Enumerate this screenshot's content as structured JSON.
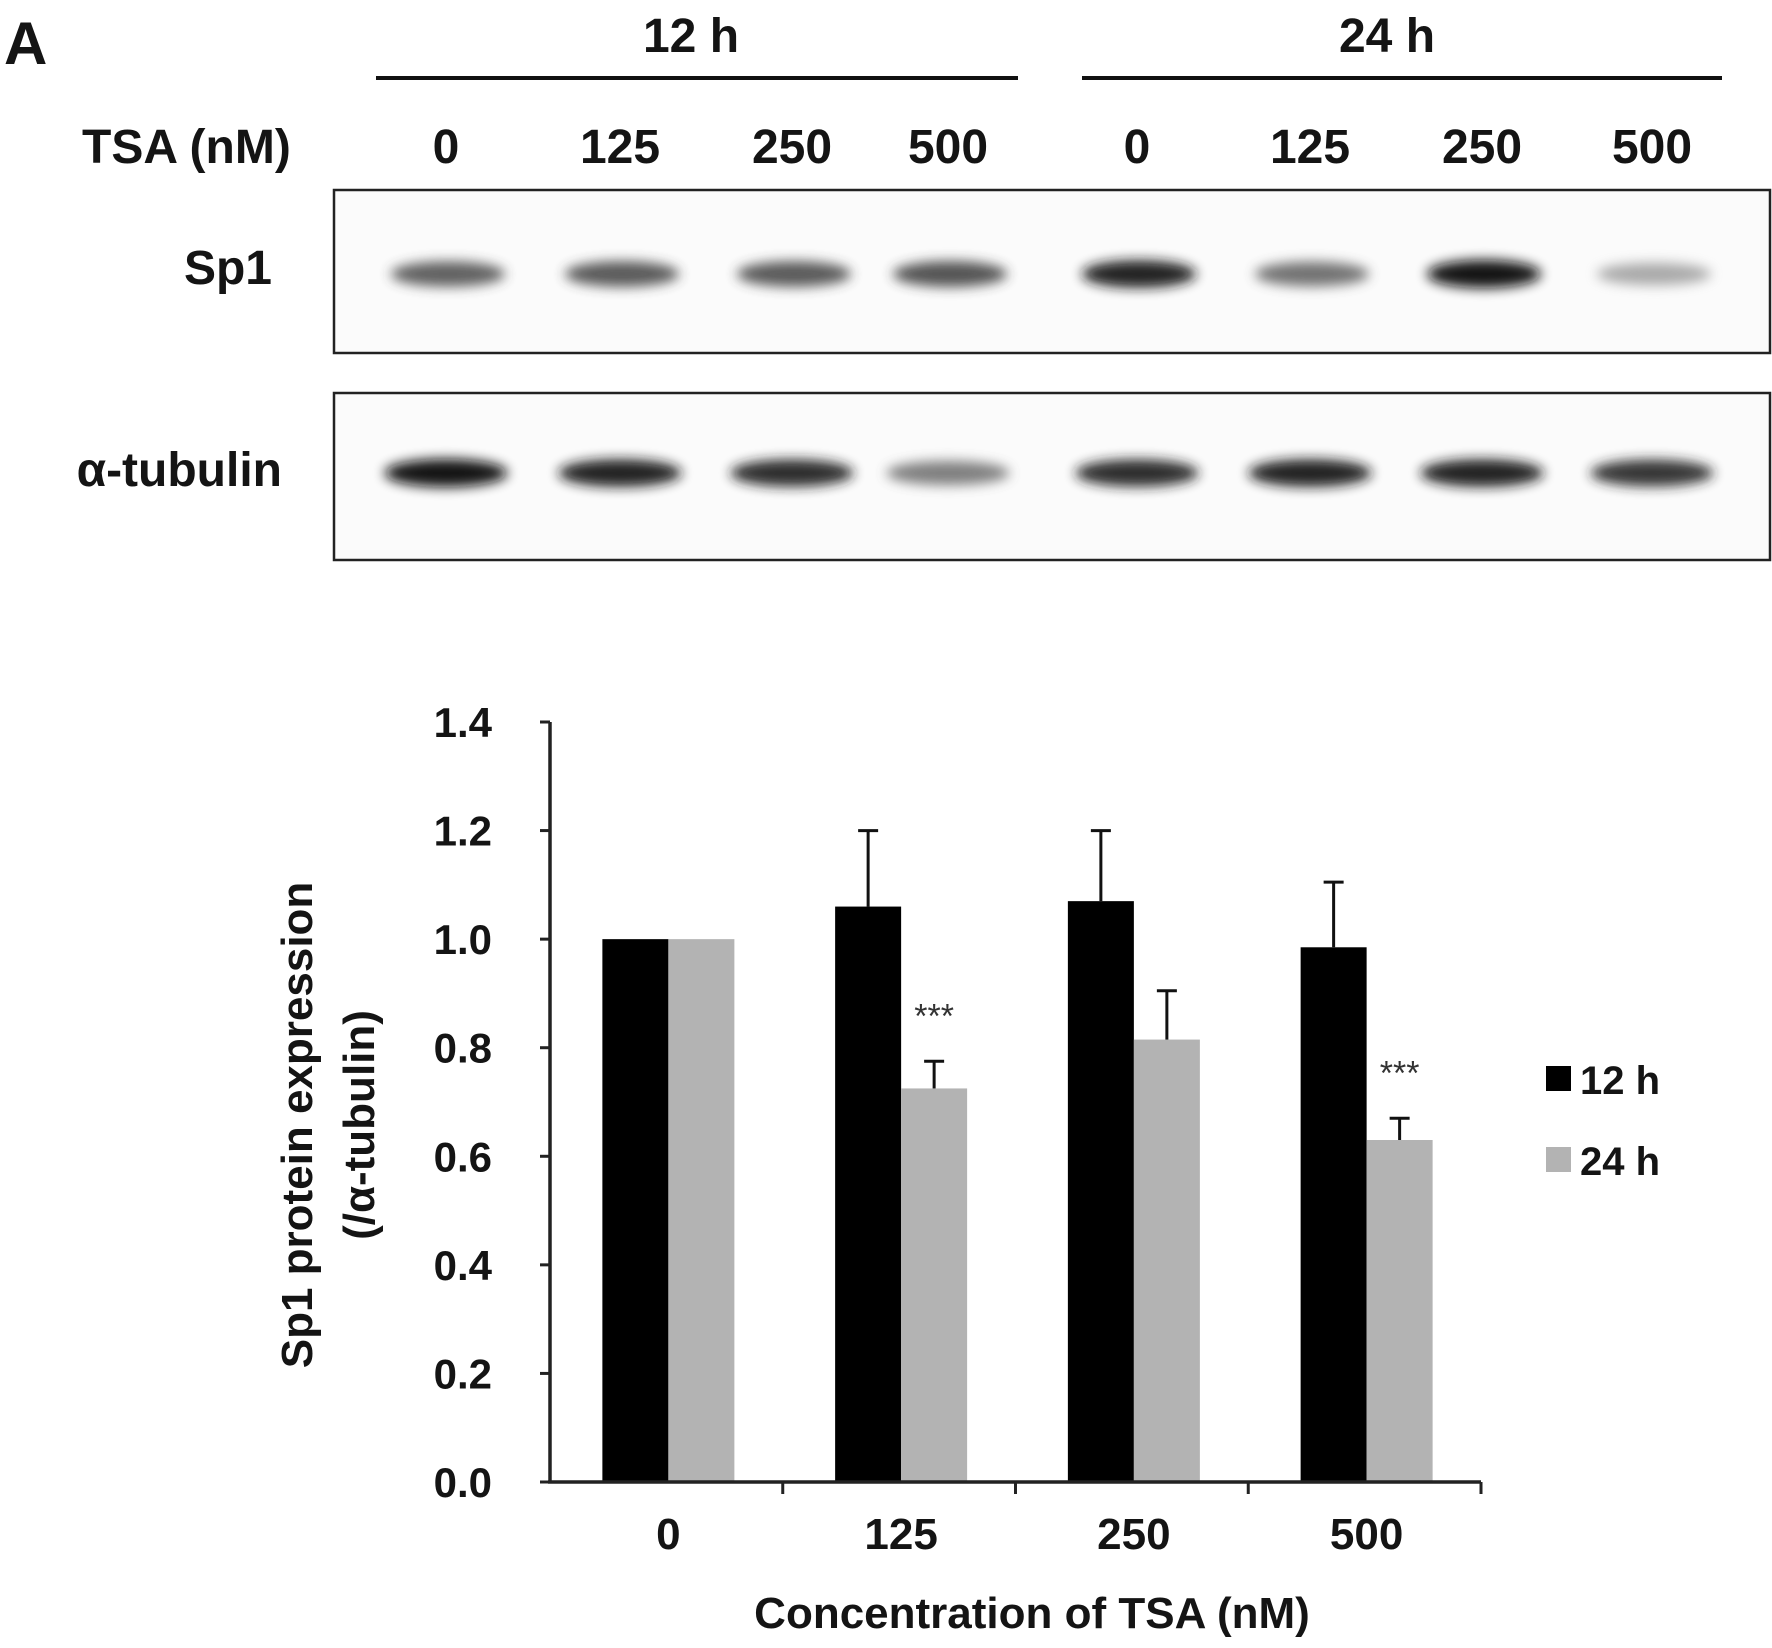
{
  "panel_label": "A",
  "blot": {
    "time_groups": [
      "12 h",
      "24 h"
    ],
    "treatment_label": "TSA (nM)",
    "lane_labels": [
      "0",
      "125",
      "250",
      "500",
      "0",
      "125",
      "250",
      "500"
    ],
    "rows": [
      {
        "label": "Sp1",
        "band_intensity": [
          0.72,
          0.74,
          0.74,
          0.76,
          0.9,
          0.66,
          0.95,
          0.45
        ]
      },
      {
        "label": "α-tubulin",
        "band_intensity": [
          0.95,
          0.9,
          0.88,
          0.62,
          0.88,
          0.9,
          0.9,
          0.85
        ]
      }
    ]
  },
  "chart_data": {
    "type": "bar",
    "categories": [
      "0",
      "125",
      "250",
      "500"
    ],
    "series": [
      {
        "name": "12 h",
        "color": "#000000",
        "values": [
          1.0,
          1.06,
          1.07,
          0.985
        ],
        "errors": [
          0.0,
          0.14,
          0.13,
          0.12
        ],
        "annotations": [
          "",
          "",
          "",
          ""
        ]
      },
      {
        "name": "24 h",
        "color": "#b3b3b3",
        "values": [
          1.0,
          0.725,
          0.815,
          0.63
        ],
        "errors": [
          0.0,
          0.05,
          0.09,
          0.04
        ],
        "annotations": [
          "",
          "***",
          "",
          "***"
        ]
      }
    ],
    "xlabel": "Concentration of TSA (nM)",
    "ylabel_line1": "Sp1 protein expression",
    "ylabel_line2": "(/α-tubulin)",
    "ylim": [
      0,
      1.4
    ],
    "yticks": [
      "0.0",
      "0.2",
      "0.4",
      "0.6",
      "0.8",
      "1.0",
      "1.2",
      "1.4"
    ],
    "grid": false,
    "legend_position": "right"
  }
}
